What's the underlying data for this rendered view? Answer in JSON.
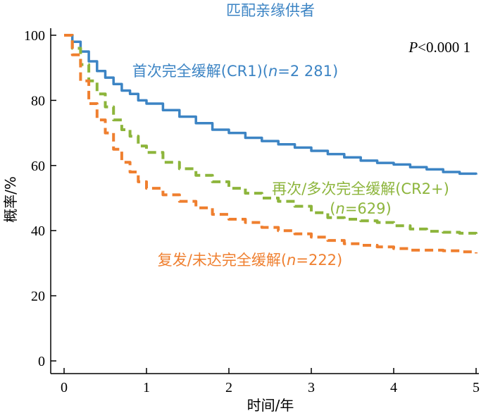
{
  "chart_data": {
    "type": "line",
    "title": "匹配亲缘供者",
    "xlabel": "时间/年",
    "ylabel": "概率/%",
    "xlim": [
      0,
      5
    ],
    "ylim": [
      0,
      100
    ],
    "x_ticks": [
      0,
      1,
      2,
      3,
      4,
      5
    ],
    "y_ticks": [
      0,
      20,
      40,
      60,
      80,
      100
    ],
    "grid": false,
    "annotation_p": "P<0.000 1",
    "title_color": "#3c84c4",
    "series": [
      {
        "name": "首次完全缓解(CR1)(n=2 281)",
        "label_lines": [
          "首次完全缓解(CR1)(n=2 281)"
        ],
        "color": "#3c84c4",
        "style": "solid",
        "x": [
          0,
          0.1,
          0.2,
          0.3,
          0.4,
          0.5,
          0.6,
          0.7,
          0.8,
          0.9,
          1.0,
          1.2,
          1.4,
          1.6,
          1.8,
          2.0,
          2.2,
          2.4,
          2.6,
          2.8,
          3.0,
          3.2,
          3.4,
          3.6,
          3.8,
          4.0,
          4.2,
          4.4,
          4.6,
          4.8,
          5.0
        ],
        "values": [
          100,
          98,
          95,
          92,
          89,
          87,
          85,
          83,
          82,
          80,
          79,
          77,
          75,
          73,
          71,
          70,
          68.5,
          67.5,
          66.5,
          65.5,
          64.5,
          63.5,
          62.5,
          61.5,
          60.8,
          60.3,
          59.5,
          58.8,
          58,
          57.5,
          57.2
        ]
      },
      {
        "name": "再次/多次完全缓解(CR2+)(n=629)",
        "label_lines": [
          "再次/多次完全缓解(CR2+)",
          "(n=629)"
        ],
        "color": "#8db53c",
        "style": "dashed",
        "x": [
          0,
          0.1,
          0.2,
          0.3,
          0.4,
          0.5,
          0.6,
          0.7,
          0.8,
          0.9,
          1.0,
          1.2,
          1.4,
          1.6,
          1.8,
          2.0,
          2.2,
          2.4,
          2.6,
          2.8,
          3.0,
          3.2,
          3.4,
          3.6,
          3.8,
          4.0,
          4.2,
          4.4,
          4.6,
          4.8,
          5.0
        ],
        "values": [
          100,
          96,
          91,
          86,
          82,
          78,
          74,
          71,
          69,
          66,
          64,
          61,
          59,
          57,
          55,
          53,
          51.5,
          50,
          49,
          47.5,
          45.5,
          44,
          43.5,
          43,
          42.5,
          41.5,
          40.5,
          39.8,
          39.5,
          39.2,
          39
        ]
      },
      {
        "name": "复发/未达完全缓解(n=222)",
        "label_lines": [
          "复发/未达完全缓解(n=222)"
        ],
        "color": "#ef7f2f",
        "style": "dashed",
        "x": [
          0,
          0.1,
          0.2,
          0.3,
          0.4,
          0.5,
          0.6,
          0.7,
          0.8,
          0.9,
          1.0,
          1.2,
          1.4,
          1.6,
          1.8,
          2.0,
          2.2,
          2.4,
          2.6,
          2.8,
          3.0,
          3.2,
          3.4,
          3.6,
          3.8,
          4.0,
          4.2,
          4.4,
          4.6,
          4.8,
          5.0
        ],
        "values": [
          100,
          94,
          86,
          79,
          74,
          70,
          65,
          61,
          58,
          55,
          53,
          51,
          49,
          47,
          45,
          43.5,
          42.5,
          41,
          40,
          39,
          38,
          37,
          36,
          35.5,
          35,
          34.5,
          34,
          34,
          33.8,
          33.5,
          33
        ]
      }
    ]
  }
}
